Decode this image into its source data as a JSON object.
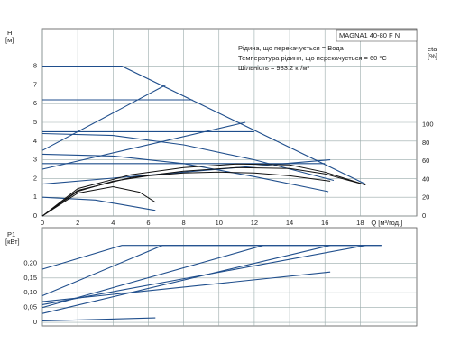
{
  "chart_data": [
    {
      "type": "line",
      "ylabel": "H",
      "yunit": "[м]",
      "y2label": "eta",
      "y2unit": "[%]",
      "xlabel": "Q [м³/год.]",
      "text_box": "MAGNA1 40-80 F N",
      "annotations": [
        "Рідина, що перекачується = Вода",
        "Температура рідини, що перекачується = 60 °C",
        "Щільність = 983.2 кг/м³"
      ],
      "xlim": [
        0,
        21.2
      ],
      "xticks": [
        0,
        2,
        4,
        6,
        8,
        10,
        12,
        14,
        16,
        18
      ],
      "ylim": [
        0,
        10
      ],
      "yticks": [
        0,
        1,
        2,
        3,
        4,
        5,
        6,
        7,
        8
      ],
      "y2lim": [
        0,
        205
      ],
      "y2ticks": [
        0,
        20,
        40,
        60,
        80,
        100
      ],
      "grid": true,
      "series": [
        {
          "color": "#1f4e8c",
          "x": [
            0,
            4.5,
            18.3
          ],
          "values": [
            8,
            8,
            1.7
          ]
        },
        {
          "color": "#1f4e8c",
          "x": [
            0,
            7
          ],
          "values": [
            3.5,
            7
          ]
        },
        {
          "color": "#1f4e8c",
          "x": [
            0,
            8.5
          ],
          "values": [
            6.2,
            6.2
          ]
        },
        {
          "color": "#1f4e8c",
          "x": [
            0,
            12
          ],
          "values": [
            4.5,
            4.5
          ]
        },
        {
          "color": "#1f4e8c",
          "x": [
            0,
            11.5
          ],
          "values": [
            2.5,
            5
          ]
        },
        {
          "color": "#1f4e8c",
          "x": [
            0,
            16
          ],
          "values": [
            2.8,
            2.8
          ]
        },
        {
          "color": "#1f4e8c",
          "x": [
            0,
            4,
            8,
            12,
            16.5
          ],
          "values": [
            4.4,
            4.3,
            3.8,
            3,
            1.9
          ]
        },
        {
          "color": "#1f4e8c",
          "x": [
            0,
            16.3
          ],
          "values": [
            1.7,
            3
          ]
        },
        {
          "color": "#1f4e8c",
          "x": [
            0,
            4,
            8,
            12,
            16.2
          ],
          "values": [
            3.3,
            3.2,
            2.8,
            2.1,
            1.3
          ]
        },
        {
          "color": "#1f4e8c",
          "x": [
            0,
            3,
            6.4
          ],
          "values": [
            1,
            0.85,
            0.3
          ]
        },
        {
          "color": "#111111",
          "axis": "y2",
          "x": [
            0,
            2,
            5,
            8,
            11,
            14,
            16,
            18.3
          ],
          "values": [
            0,
            30,
            45,
            53,
            57,
            56,
            48,
            34
          ]
        },
        {
          "color": "#111111",
          "axis": "y2",
          "x": [
            0,
            2,
            5,
            8,
            11,
            14,
            16,
            18.3
          ],
          "values": [
            0,
            28,
            42,
            49,
            53,
            52,
            46,
            34
          ]
        },
        {
          "color": "#111111",
          "axis": "y2",
          "x": [
            0,
            2,
            4,
            6,
            8,
            10,
            12,
            14,
            16.3
          ],
          "values": [
            0,
            27,
            38,
            44,
            47,
            48,
            47,
            44,
            38
          ]
        },
        {
          "color": "#111111",
          "axis": "y2",
          "x": [
            0,
            2,
            4,
            5.5,
            6.4
          ],
          "values": [
            0,
            25,
            32,
            26,
            15
          ]
        }
      ]
    },
    {
      "type": "line",
      "ylabel": "P1",
      "yunit": "[кВт]",
      "xlim": [
        0,
        21.2
      ],
      "ylim": [
        -0.012,
        0.32
      ],
      "yticks": [
        0,
        {
          "value": 0.05,
          "label": "0,05"
        },
        {
          "value": 0.1,
          "label": "0,10"
        },
        {
          "value": 0.15,
          "label": "0,15"
        },
        {
          "value": 0.2,
          "label": "0,20"
        }
      ],
      "grid": true,
      "series": [
        {
          "color": "#1f4e8c",
          "x": [
            0,
            4.5,
            19.2
          ],
          "values": [
            0.18,
            0.26,
            0.26
          ]
        },
        {
          "color": "#1f4e8c",
          "x": [
            0,
            6.8,
            19.2
          ],
          "values": [
            0.09,
            0.26,
            0.26
          ]
        },
        {
          "color": "#1f4e8c",
          "x": [
            0,
            12.5
          ],
          "values": [
            0.05,
            0.26
          ]
        },
        {
          "color": "#1f4e8c",
          "x": [
            0,
            16.3
          ],
          "values": [
            0.03,
            0.26
          ]
        },
        {
          "color": "#1f4e8c",
          "x": [
            0,
            18.3
          ],
          "values": [
            0.06,
            0.26
          ]
        },
        {
          "color": "#1f4e8c",
          "x": [
            0,
            16.3
          ],
          "values": [
            0.07,
            0.17
          ]
        },
        {
          "color": "#1f4e8c",
          "x": [
            0,
            6.4
          ],
          "values": [
            0.005,
            0.015
          ]
        }
      ]
    }
  ]
}
